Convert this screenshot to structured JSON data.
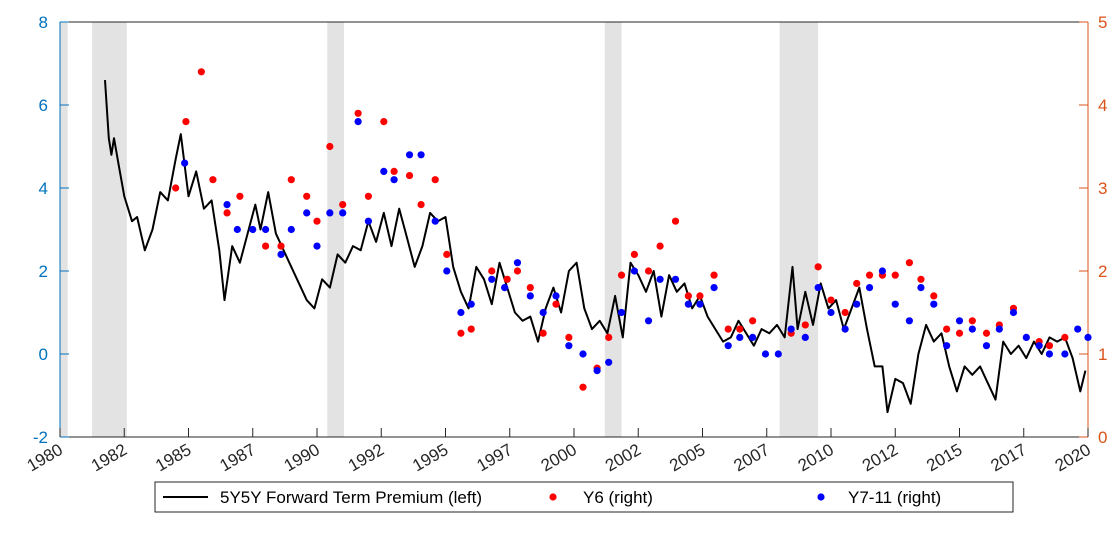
{
  "chart_data": {
    "type": "line",
    "xlim": [
      1980,
      2020
    ],
    "xticks": [
      1980,
      {
        "value": 1982.5,
        "label": "1982"
      },
      1985,
      {
        "value": 1987.5,
        "label": "1987"
      },
      1990,
      {
        "value": 1992.5,
        "label": "1992"
      },
      1995,
      {
        "value": 1997.5,
        "label": "1997"
      },
      2000,
      {
        "value": 2002.5,
        "label": "2002"
      },
      2005,
      {
        "value": 2007.5,
        "label": "2007"
      },
      2010,
      {
        "value": 2012.5,
        "label": "2012"
      },
      2015,
      {
        "value": 2017.5,
        "label": "2017"
      },
      2020
    ],
    "ylim": [
      -2,
      8
    ],
    "yticks": [
      -2,
      0,
      2,
      4,
      6,
      8
    ],
    "ycolor": "#0072bd",
    "y2lim": [
      0,
      5
    ],
    "y2ticks": [
      0,
      1,
      2,
      3,
      4,
      5
    ],
    "y2color": "#d95319",
    "shading": [
      [
        1980,
        1980.3
      ],
      [
        1981.25,
        1982.6
      ],
      [
        1990.4,
        1991.05
      ],
      [
        2001.2,
        2001.85
      ],
      [
        2008.0,
        2009.5
      ]
    ],
    "shading_color": "#e3e3e3",
    "series": [
      {
        "name": "5Y5Y Forward Term Premium (left)",
        "type": "line",
        "color": "#000000",
        "x": [
          1981.75,
          1981.9,
          1982.0,
          1982.1,
          1982.3,
          1982.5,
          1982.8,
          1983.0,
          1983.3,
          1983.6,
          1983.9,
          1984.2,
          1984.5,
          1984.7,
          1985.0,
          1985.3,
          1985.6,
          1985.9,
          1986.2,
          1986.4,
          1986.7,
          1987.0,
          1987.3,
          1987.6,
          1987.8,
          1988.1,
          1988.4,
          1988.7,
          1989.0,
          1989.3,
          1989.6,
          1989.9,
          1990.2,
          1990.5,
          1990.8,
          1991.1,
          1991.4,
          1991.7,
          1992.0,
          1992.3,
          1992.6,
          1992.9,
          1993.2,
          1993.5,
          1993.8,
          1994.1,
          1994.4,
          1994.7,
          1995.0,
          1995.3,
          1995.6,
          1995.9,
          1996.2,
          1996.5,
          1996.8,
          1997.1,
          1997.4,
          1997.7,
          1998.0,
          1998.3,
          1998.6,
          1998.9,
          1999.2,
          1999.5,
          1999.8,
          2000.1,
          2000.4,
          2000.7,
          2001.0,
          2001.3,
          2001.6,
          2001.9,
          2002.2,
          2002.5,
          2002.8,
          2003.1,
          2003.4,
          2003.7,
          2004.0,
          2004.3,
          2004.6,
          2004.9,
          2005.2,
          2005.5,
          2005.8,
          2006.1,
          2006.4,
          2006.7,
          2007.0,
          2007.3,
          2007.6,
          2007.9,
          2008.2,
          2008.5,
          2008.7,
          2009.0,
          2009.3,
          2009.6,
          2009.9,
          2010.2,
          2010.5,
          2010.8,
          2011.1,
          2011.4,
          2011.7,
          2012.0,
          2012.2,
          2012.5,
          2012.8,
          2013.1,
          2013.4,
          2013.7,
          2014.0,
          2014.3,
          2014.6,
          2014.9,
          2015.2,
          2015.5,
          2015.8,
          2016.1,
          2016.4,
          2016.7,
          2017.0,
          2017.3,
          2017.6,
          2017.9,
          2018.2,
          2018.5,
          2018.8,
          2019.1,
          2019.4,
          2019.7,
          2019.9
        ],
        "values": [
          6.6,
          5.2,
          4.8,
          5.2,
          4.5,
          3.8,
          3.2,
          3.3,
          2.5,
          3.0,
          3.9,
          3.7,
          4.7,
          5.3,
          3.8,
          4.4,
          3.5,
          3.7,
          2.5,
          1.3,
          2.6,
          2.2,
          2.9,
          3.6,
          3.0,
          3.9,
          2.9,
          2.5,
          2.1,
          1.7,
          1.3,
          1.1,
          1.8,
          1.6,
          2.4,
          2.2,
          2.6,
          2.5,
          3.2,
          2.7,
          3.4,
          2.6,
          3.5,
          2.8,
          2.1,
          2.6,
          3.4,
          3.2,
          3.3,
          2.1,
          1.5,
          1.1,
          2.1,
          1.8,
          1.2,
          2.2,
          1.6,
          1.0,
          0.8,
          0.9,
          0.3,
          1.1,
          1.6,
          1.0,
          2.0,
          2.2,
          1.1,
          0.6,
          0.8,
          0.5,
          1.4,
          0.4,
          2.2,
          1.9,
          1.5,
          2.0,
          0.9,
          1.9,
          1.5,
          1.7,
          1.1,
          1.4,
          0.9,
          0.6,
          0.3,
          0.4,
          0.8,
          0.5,
          0.2,
          0.6,
          0.5,
          0.7,
          0.4,
          2.1,
          0.6,
          1.5,
          0.7,
          1.7,
          1.1,
          1.3,
          0.6,
          1.1,
          1.6,
          0.6,
          -0.3,
          -0.3,
          -1.4,
          -0.6,
          -0.7,
          -1.2,
          0.0,
          0.7,
          0.3,
          0.5,
          -0.3,
          -0.9,
          -0.3,
          -0.5,
          -0.3,
          -0.7,
          -1.1,
          0.3,
          0.0,
          0.2,
          -0.1,
          0.3,
          0.0,
          0.4,
          0.3,
          0.4,
          -0.1,
          -0.9,
          -0.4
        ]
      },
      {
        "name": "Y6 (right)",
        "type": "scatter",
        "axis": "y2",
        "color": "#ff0000",
        "x": [
          1984.5,
          1984.9,
          1985.5,
          1985.95,
          1986.5,
          1987.0,
          1988.0,
          1988.6,
          1989.0,
          1989.6,
          1990.0,
          1990.5,
          1991.0,
          1991.6,
          1992.0,
          1992.6,
          1993.0,
          1993.6,
          1994.05,
          1994.6,
          1995.05,
          1995.6,
          1996.0,
          1996.8,
          1997.4,
          1997.8,
          1998.3,
          1998.8,
          1999.3,
          1999.8,
          2000.35,
          2000.9,
          2001.35,
          2001.85,
          2002.35,
          2002.9,
          2003.35,
          2003.95,
          2004.45,
          2004.9,
          2005.45,
          2006.0,
          2006.45,
          2006.95,
          2008.45,
          2009.0,
          2009.5,
          2010.0,
          2010.55,
          2011.0,
          2011.5,
          2012.0,
          2012.5,
          2013.05,
          2013.5,
          2014.0,
          2014.5,
          2015.0,
          2015.5,
          2016.05,
          2016.55,
          2017.1,
          2018.1,
          2018.5,
          2019.1
        ],
        "values": [
          3.0,
          3.8,
          4.4,
          3.1,
          2.7,
          2.9,
          2.3,
          2.3,
          3.1,
          2.9,
          2.6,
          3.5,
          2.8,
          3.9,
          2.9,
          3.8,
          3.2,
          3.15,
          2.8,
          3.1,
          2.2,
          1.25,
          1.3,
          2.0,
          1.9,
          2.0,
          1.8,
          1.25,
          1.6,
          1.2,
          0.6,
          0.83,
          1.2,
          1.95,
          2.2,
          2.0,
          2.3,
          2.6,
          1.7,
          1.7,
          1.95,
          1.3,
          1.3,
          1.4,
          1.25,
          1.35,
          2.05,
          1.65,
          1.5,
          1.85,
          1.95,
          1.95,
          1.95,
          2.1,
          1.9,
          1.7,
          1.3,
          1.25,
          1.4,
          1.25,
          1.35,
          1.55,
          1.15,
          1.1,
          1.2
        ]
      },
      {
        "name": "Y7-11 (right)",
        "type": "scatter",
        "axis": "y2",
        "color": "#0000ff",
        "x": [
          1984.85,
          1986.5,
          1986.9,
          1987.5,
          1988.0,
          1988.6,
          1989.0,
          1989.6,
          1990.0,
          1990.5,
          1991.0,
          1991.6,
          1992.0,
          1992.6,
          1993.0,
          1993.6,
          1994.05,
          1994.6,
          1995.05,
          1995.6,
          1996.0,
          1996.8,
          1997.3,
          1997.8,
          1998.3,
          1998.8,
          1999.3,
          1999.8,
          2000.35,
          2000.9,
          2001.35,
          2001.85,
          2002.35,
          2002.9,
          2003.35,
          2003.95,
          2004.45,
          2004.9,
          2005.45,
          2006.0,
          2006.45,
          2006.95,
          2007.45,
          2007.95,
          2008.45,
          2009.0,
          2009.5,
          2010.0,
          2010.55,
          2011.0,
          2011.5,
          2012.0,
          2012.5,
          2013.05,
          2013.5,
          2014.0,
          2014.5,
          2015.0,
          2015.5,
          2016.05,
          2016.55,
          2017.1,
          2017.6,
          2018.1,
          2018.5,
          2019.1,
          2019.6,
          2020.0
        ],
        "values": [
          3.3,
          2.8,
          2.5,
          2.5,
          2.5,
          2.2,
          2.5,
          2.7,
          2.3,
          2.7,
          2.7,
          3.8,
          2.6,
          3.2,
          3.1,
          3.4,
          3.4,
          2.6,
          2.0,
          1.5,
          1.6,
          1.9,
          1.8,
          2.1,
          1.7,
          1.5,
          1.7,
          1.1,
          1.0,
          0.8,
          0.9,
          1.5,
          2.0,
          1.4,
          1.9,
          1.9,
          1.6,
          1.6,
          1.8,
          1.1,
          1.2,
          1.2,
          1.0,
          1.0,
          1.3,
          1.2,
          1.8,
          1.5,
          1.3,
          1.6,
          1.8,
          2.0,
          1.6,
          1.4,
          1.8,
          1.6,
          1.1,
          1.4,
          1.3,
          1.1,
          1.3,
          1.5,
          1.2,
          1.1,
          1.0,
          1.0,
          1.3,
          1.2
        ]
      }
    ]
  }
}
